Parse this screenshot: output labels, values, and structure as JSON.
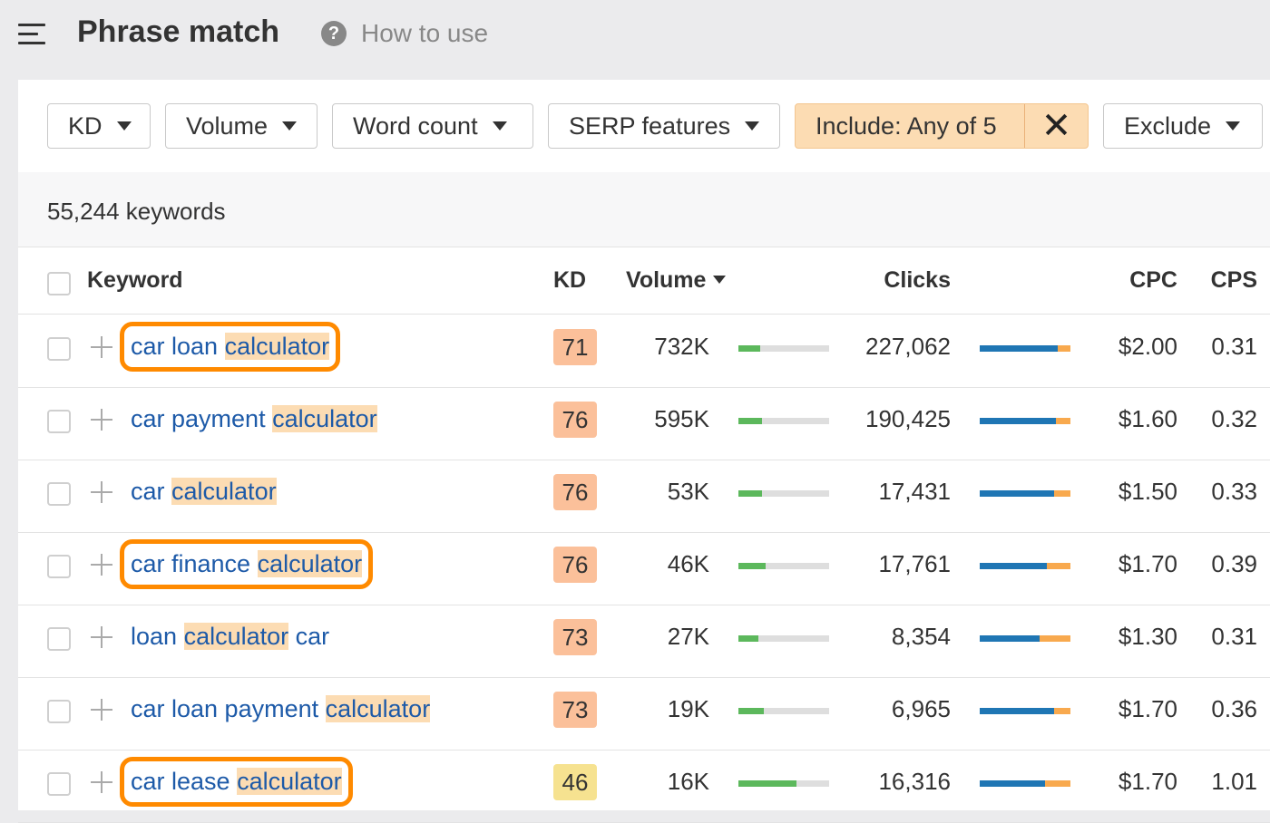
{
  "header": {
    "title": "Phrase match",
    "help_icon": "?",
    "help_label": "How to use"
  },
  "filters": {
    "kd": "KD",
    "volume": "Volume",
    "word_count": "Word count",
    "serp_features": "SERP features",
    "include": "Include: Any of 5",
    "include_clear": "✕",
    "exclude": "Exclude"
  },
  "summary": {
    "count": "55,244 keywords"
  },
  "table": {
    "headers": {
      "keyword": "Keyword",
      "kd": "KD",
      "volume": "Volume",
      "clicks": "Clicks",
      "cpc": "CPC",
      "cps": "CPS"
    },
    "rows": [
      {
        "kw_pre": "car loan ",
        "kw_hl": "calculator",
        "kw_post": "",
        "kd": "71",
        "volume": "732K",
        "clicks": "227,062",
        "cpc": "$2.00",
        "cps": "0.31"
      },
      {
        "kw_pre": "car payment ",
        "kw_hl": "calculator",
        "kw_post": "",
        "kd": "76",
        "volume": "595K",
        "clicks": "190,425",
        "cpc": "$1.60",
        "cps": "0.32"
      },
      {
        "kw_pre": "car ",
        "kw_hl": "calculator",
        "kw_post": "",
        "kd": "76",
        "volume": "53K",
        "clicks": "17,431",
        "cpc": "$1.50",
        "cps": "0.33"
      },
      {
        "kw_pre": "car finance ",
        "kw_hl": "calculator",
        "kw_post": "",
        "kd": "76",
        "volume": "46K",
        "clicks": "17,761",
        "cpc": "$1.70",
        "cps": "0.39"
      },
      {
        "kw_pre": "loan ",
        "kw_hl": "calculator",
        "kw_post": " car",
        "kd": "73",
        "volume": "27K",
        "clicks": "8,354",
        "cpc": "$1.30",
        "cps": "0.31"
      },
      {
        "kw_pre": "car loan payment ",
        "kw_hl": "calculator",
        "kw_post": "",
        "kd": "73",
        "volume": "19K",
        "clicks": "6,965",
        "cpc": "$1.70",
        "cps": "0.36"
      },
      {
        "kw_pre": "car lease ",
        "kw_hl": "calculator",
        "kw_post": "",
        "kd": "46",
        "volume": "16K",
        "clicks": "16,316",
        "cpc": "$1.70",
        "cps": "1.01"
      }
    ]
  },
  "colors": {
    "kd_hard": "#fbc09a",
    "kd_medium": "#f6e290",
    "highlight": "#fcdcb3",
    "callout_box": "#ff8a00",
    "link": "#1d5aa8",
    "volume_bar": "#5cb85c",
    "clicks_paid": "#f8a94e",
    "clicks_organic": "#1f76b4"
  }
}
